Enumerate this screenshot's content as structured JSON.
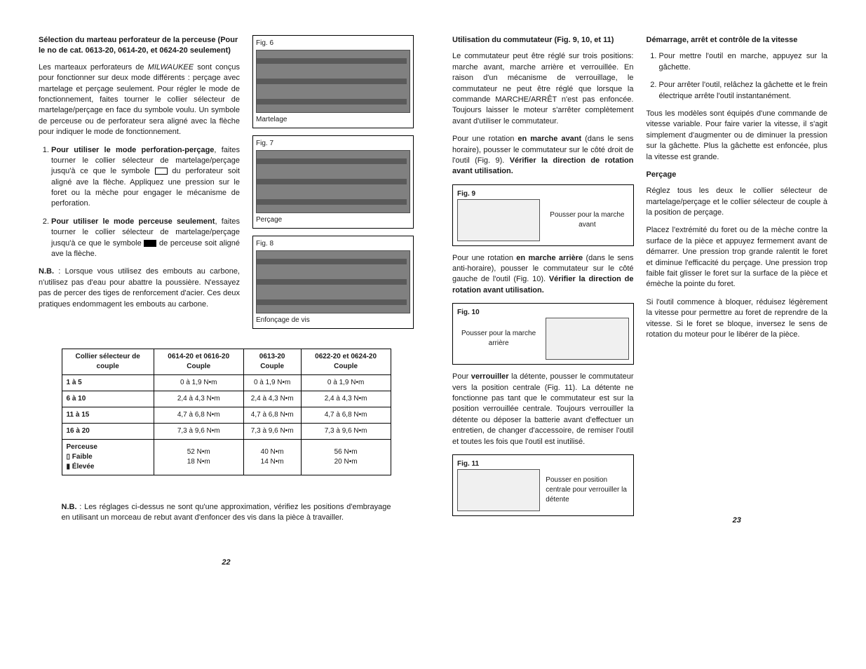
{
  "left_page": {
    "col1": {
      "heading": "Sélection du marteau perforateur de la perceuse (Pour le no de cat. 0613-20, 0614-20, et 0624-20 seulement)",
      "p1_a": "Les marteaux perforateurs de ",
      "p1_italic": "MILWAUKEE",
      "p1_b": " sont conçus pour fonctionner sur deux mode différents : perçage avec martelage et perçage seulement. Pour régler le mode de fonctionnement, faites tourner le collier sélecteur de martelage/perçage en face du symbole voulu. Un symbole de perceuse ou de perforateur sera aligné avec la flèche pour indiquer le mode de fonctionnement.",
      "li1_bold": "Pour utiliser le mode perforation-perçage",
      "li1_text": ", faites tourner le collier sélecteur de martelage/perçage jusqu'à ce que le symbole ",
      "li1_text2": " du perforateur soit aligné ave la flèche. Appliquez une pression sur le foret ou la mèche pour engager le mécanisme de perforation.",
      "li2_bold": "Pour utiliser le mode perceuse seulement",
      "li2_text": ", faites tourner le collier sélecteur de martelage/perçage jusqu'à ce que le symbole ",
      "li2_text2": " de perceuse soit aligné ave la flèche.",
      "nb_bold": "N.B.",
      "nb_text": " : Lorsque vous utilisez des embouts au carbone, n'utilisez pas d'eau pour abattre la poussière. N'essayez pas de percer des tiges de renforcement d'acier. Ces deux pratiques endommagent les embouts au carbone."
    },
    "figures": {
      "fig6_label": "Fig. 6",
      "fig6_caption": "Martelage",
      "fig7_label": "Fig. 7",
      "fig7_caption": "Perçage",
      "fig8_label": "Fig. 8",
      "fig8_caption": "Enfonçage de vis"
    },
    "table": {
      "headers": [
        "Collier sélecteur de couple",
        "0614-20 et 0616-20 Couple",
        "0613-20 Couple",
        "0622-20 et 0624-20 Couple"
      ],
      "rows": [
        [
          "1 à 5",
          "0 à 1,9 N•m",
          "0 à 1,9 N•m",
          "0 à 1,9 N•m"
        ],
        [
          "6 à 10",
          "2,4 à 4,3 N•m",
          "2,4 à 4,3 N•m",
          "2,4 à 4,3 N•m"
        ],
        [
          "11 à 15",
          "4,7 à 6,8 N•m",
          "4,7 à 6,8 N•m",
          "4,7 à 6,8 N•m"
        ],
        [
          "16 à 20",
          "7,3 à 9,6 N•m",
          "7,3 à 9,6 N•m",
          "7,3 à 9,6 N•m"
        ]
      ],
      "footer_row": {
        "label_a": "Perceuse",
        "label_b": "Faible",
        "label_c": "Élevée",
        "c1a": "52 N•m",
        "c1b": "18 N•m",
        "c2a": "40 N•m",
        "c2b": "14 N•m",
        "c3a": "56 N•m",
        "c3b": "20 N•m"
      }
    },
    "note2_bold": "N.B.",
    "note2_text": " : Les réglages ci-dessus ne sont qu'une approximation, vérifiez les positions d'embrayage en utilisant un morceau de rebut avant d'enfoncer des vis dans la pièce à travailler.",
    "page_num": "22"
  },
  "right_page": {
    "col1": {
      "heading": "Utilisation du commutateur (Fig. 9, 10, et 11)",
      "p1": "Le commutateur peut être réglé sur trois positions: marche avant, marche arrière et verrouillée. En raison d'un mécanisme de verrouillage, le commutateur ne peut être réglé que lorsque la commande MARCHE/ARRÊT n'est pas enfoncée. Toujours laisser le moteur s'arrêter complètement avant d'utiliser le commutateur.",
      "p2_a": "Pour une rotation ",
      "p2_bold": "en marche avant",
      "p2_b": " (dans le sens horaire), pousser le commutateur sur le côté droit de l'outil (Fig. 9). ",
      "p2_bold2": "Vérifier la direction de rotation avant utilisation.",
      "fig9_label": "Fig. 9",
      "fig9_text": "Pousser pour la marche avant",
      "p3_a": "Pour une rotation ",
      "p3_bold": "en marche arrière",
      "p3_b": " (dans le sens anti-horaire), pousser le commutateur sur le côté gauche de l'outil (Fig. 10). ",
      "p3_bold2": "Vérifier la direction de rotation avant utilisation.",
      "fig10_label": "Fig. 10",
      "fig10_text": "Pousser pour la marche arrière",
      "p4_a": "Pour ",
      "p4_bold": "verrouiller",
      "p4_b": " la détente, pousser le commutateur vers la position centrale (Fig. 11). La détente ne fonctionne pas tant que le commutateur est sur la position verrouillée centrale. Toujours verrouiller la détente ou déposer la batterie avant d'effectuer un entretien, de changer d'accessoire, de remiser l'outil et toutes les fois que l'outil est inutilisé.",
      "fig11_label": "Fig. 11",
      "fig11_text": "Pousser en position centrale pour verrouiller la détente"
    },
    "col2": {
      "heading": "Démarrage, arrêt et contrôle de la vitesse",
      "li1": "Pour mettre l'outil en marche, appuyez sur la gâchette.",
      "li2": "Pour arrêter l'outil, relâchez la gâchette et le frein électrique arrête l'outil instantanément.",
      "p1": "Tous les modèles sont équipés d'une commande de vitesse variable. Pour faire varier la vitesse, il s'agit simplement d'augmenter ou de diminuer la pression sur la gâchette. Plus la gâchette est enfoncée, plus la vitesse est grande.",
      "heading2": "Perçage",
      "p2": "Réglez tous les deux le collier sélecteur de martelage/perçage et le collier sélecteur de couple à la position de perçage.",
      "p3": "Placez l'extrémité du foret ou de la mèche contre la surface de la pièce et appuyez fermement avant de démarrer. Une pression trop grande ralentit le foret et diminue l'efficacité du perçage. Une pression trop faible fait glisser le foret sur la surface de la pièce et émèche la pointe du foret.",
      "p4": "Si l'outil commence à bloquer, réduisez légèrement la vitesse pour permettre au foret de reprendre de la vitesse. Si le foret se bloque, inversez le sens de rotation du moteur pour le libérer de la pièce."
    },
    "page_num": "23"
  }
}
